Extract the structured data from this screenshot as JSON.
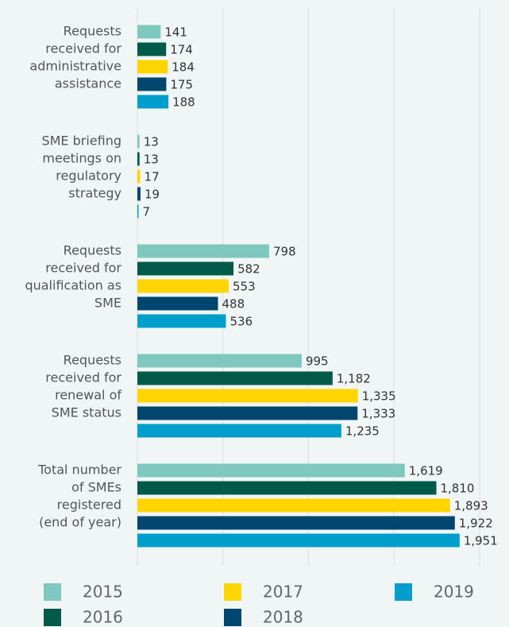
{
  "chart_data": {
    "type": "bar",
    "orientation": "horizontal",
    "categories": [
      [
        "Requests",
        "received for",
        "administrative",
        "assistance"
      ],
      [
        "SME briefing",
        "meetings on",
        "regulatory",
        "strategy"
      ],
      [
        "Requests",
        "received for",
        "qualification as",
        "SME"
      ],
      [
        "Requests",
        "received for",
        "renewal of",
        "SME status"
      ],
      [
        "Total number",
        "of SMEs",
        "registered",
        "(end of year)"
      ]
    ],
    "series": [
      {
        "name": "2015",
        "color": "#7fc8c0",
        "values": [
          141,
          13,
          798,
          995,
          1619
        ],
        "value_labels": [
          "141",
          "13",
          "798",
          "995",
          "1,619"
        ]
      },
      {
        "name": "2016",
        "color": "#005a4a",
        "values": [
          174,
          13,
          582,
          1182,
          1810
        ],
        "value_labels": [
          "174",
          "13",
          "582",
          "1,182",
          "1,810"
        ]
      },
      {
        "name": "2017",
        "color": "#ffd500",
        "values": [
          184,
          17,
          553,
          1335,
          1893
        ],
        "value_labels": [
          "184",
          "17",
          "553",
          "1,335",
          "1,893"
        ]
      },
      {
        "name": "2018",
        "color": "#00466e",
        "values": [
          175,
          19,
          488,
          1333,
          1922
        ],
        "value_labels": [
          "175",
          "19",
          "488",
          "1,333",
          "1,922"
        ]
      },
      {
        "name": "2019",
        "color": "#009fcb",
        "values": [
          188,
          7,
          536,
          1235,
          1951
        ],
        "value_labels": [
          "188",
          "7",
          "536",
          "1,235",
          "1,951"
        ]
      }
    ],
    "xlim": [
      0,
      2072
    ],
    "xticks": [
      0,
      518,
      1036,
      1554,
      2072
    ],
    "grid": true
  }
}
